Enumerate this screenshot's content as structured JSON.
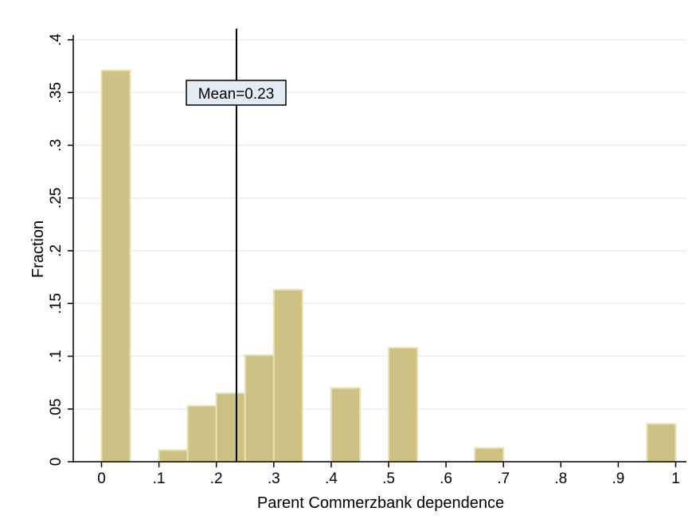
{
  "chart_data": {
    "type": "bar",
    "xlabel": "Parent Commerzbank dependence",
    "ylabel": "Fraction",
    "xlim": [
      -0.05,
      1.02
    ],
    "ylim": [
      0,
      0.4
    ],
    "x_ticks": [
      {
        "value": 0,
        "label": "0"
      },
      {
        "value": 0.1,
        "label": ".1"
      },
      {
        "value": 0.2,
        "label": ".2"
      },
      {
        "value": 0.3,
        "label": ".3"
      },
      {
        "value": 0.4,
        "label": ".4"
      },
      {
        "value": 0.5,
        "label": ".5"
      },
      {
        "value": 0.6,
        "label": ".6"
      },
      {
        "value": 0.7,
        "label": ".7"
      },
      {
        "value": 0.8,
        "label": ".8"
      },
      {
        "value": 0.9,
        "label": ".9"
      },
      {
        "value": 1,
        "label": "1"
      }
    ],
    "y_ticks": [
      {
        "value": 0,
        "label": "0"
      },
      {
        "value": 0.05,
        "label": ".05"
      },
      {
        "value": 0.1,
        "label": ".1"
      },
      {
        "value": 0.15,
        "label": ".15"
      },
      {
        "value": 0.2,
        "label": ".2"
      },
      {
        "value": 0.25,
        "label": ".25"
      },
      {
        "value": 0.3,
        "label": ".3"
      },
      {
        "value": 0.35,
        "label": ".35"
      },
      {
        "value": 0.4,
        "label": ".4"
      }
    ],
    "bin_width": 0.05,
    "bins": [
      {
        "start": 0.0,
        "value": 0.371
      },
      {
        "start": 0.1,
        "value": 0.011
      },
      {
        "start": 0.15,
        "value": 0.053
      },
      {
        "start": 0.2,
        "value": 0.065
      },
      {
        "start": 0.25,
        "value": 0.101
      },
      {
        "start": 0.3,
        "value": 0.163
      },
      {
        "start": 0.4,
        "value": 0.07
      },
      {
        "start": 0.5,
        "value": 0.108
      },
      {
        "start": 0.65,
        "value": 0.013
      },
      {
        "start": 0.95,
        "value": 0.036
      }
    ],
    "mean": {
      "value": 0.235,
      "label": "Mean=0.23"
    },
    "grid": true,
    "colors": {
      "bar_fill": "#cdc283",
      "bar_edge": "#e8e2b5",
      "grid": "#e9eef2",
      "annotation_fill": "#e2ecf2"
    }
  }
}
